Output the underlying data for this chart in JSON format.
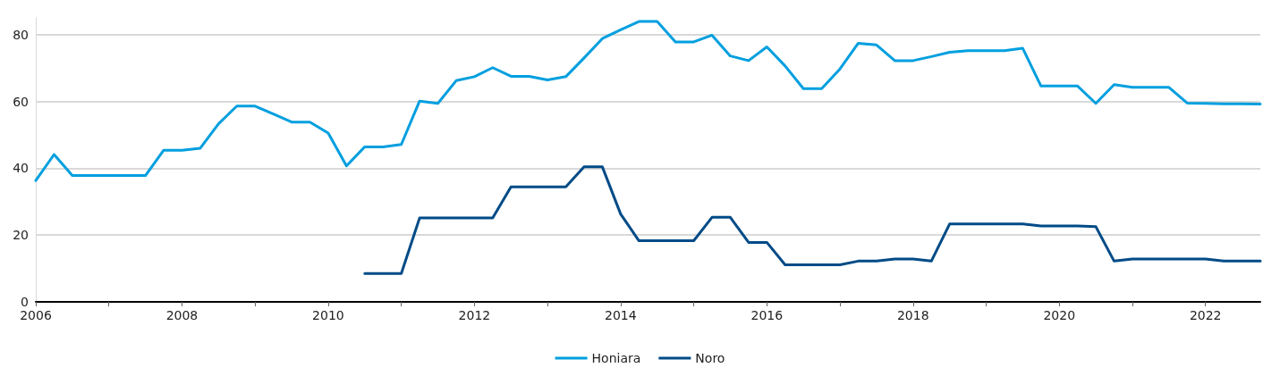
{
  "chart_data": {
    "type": "line",
    "x": [
      2006,
      2006.25,
      2006.5,
      2006.75,
      2007,
      2007.25,
      2007.5,
      2007.75,
      2008,
      2008.25,
      2008.5,
      2008.75,
      2009,
      2009.25,
      2009.5,
      2009.75,
      2010,
      2010.25,
      2010.5,
      2010.75,
      2011,
      2011.25,
      2011.5,
      2011.75,
      2012,
      2012.25,
      2012.5,
      2012.75,
      2013,
      2013.25,
      2013.5,
      2013.75,
      2014,
      2014.25,
      2014.5,
      2014.75,
      2015,
      2015.25,
      2015.5,
      2015.75,
      2016,
      2016.25,
      2016.5,
      2016.75,
      2017,
      2017.25,
      2017.5,
      2017.75,
      2018,
      2018.25,
      2018.5,
      2018.75,
      2019,
      2019.25,
      2019.5,
      2019.75,
      2020,
      2020.25,
      2020.5,
      2020.75,
      2021,
      2021.25,
      2021.5,
      2021.75,
      2022,
      2022.25,
      2022.5,
      2022.75
    ],
    "series": [
      {
        "name": "Honiara",
        "color": "#009fdf",
        "values": [
          36.3,
          44.1,
          37.8,
          37.8,
          37.8,
          37.8,
          37.8,
          45.4,
          45.4,
          46.0,
          53.3,
          58.6,
          58.6,
          56.2,
          53.8,
          53.8,
          50.5,
          40.7,
          46.4,
          46.4,
          47.1,
          60.1,
          59.4,
          66.2,
          67.4,
          70.1,
          67.5,
          67.5,
          66.4,
          67.4,
          73.0,
          78.8,
          81.4,
          83.9,
          83.9,
          77.8,
          77.8,
          79.8,
          73.6,
          72.2,
          76.3,
          70.6,
          63.8,
          63.8,
          69.7,
          77.4,
          76.9,
          72.2,
          72.2,
          73.4,
          74.7,
          75.2,
          75.2,
          75.2,
          75.9,
          64.6,
          64.6,
          64.6,
          59.4,
          65.0,
          64.2,
          64.2,
          64.2,
          59.5,
          59.4,
          59.3,
          59.3,
          59.2
        ]
      },
      {
        "name": "Noro",
        "color": "#004b87",
        "values": [
          null,
          null,
          null,
          null,
          null,
          null,
          null,
          null,
          null,
          null,
          null,
          null,
          null,
          null,
          null,
          null,
          null,
          null,
          8.5,
          8.5,
          8.5,
          25.1,
          25.1,
          25.1,
          25.1,
          25.1,
          34.4,
          34.4,
          34.4,
          34.4,
          40.4,
          40.4,
          26.3,
          18.3,
          18.3,
          18.3,
          18.3,
          25.3,
          25.3,
          17.8,
          17.8,
          11.1,
          11.1,
          11.1,
          11.1,
          12.2,
          12.2,
          12.8,
          12.8,
          12.2,
          23.3,
          23.3,
          23.3,
          23.3,
          23.3,
          22.7,
          22.7,
          22.7,
          22.5,
          12.2,
          12.8,
          12.8,
          12.8,
          12.8,
          12.8,
          12.2,
          12.2,
          12.2
        ]
      }
    ],
    "xlim": [
      2006,
      2022.75
    ],
    "xticks": [
      2006,
      {
        "value": 2007,
        "label": null
      },
      2008,
      {
        "value": 2009,
        "label": null
      },
      2010,
      {
        "value": 2011,
        "label": null
      },
      2012,
      {
        "value": 2013,
        "label": null
      },
      2014,
      {
        "value": 2015,
        "label": null
      },
      2016,
      {
        "value": 2017,
        "label": null
      },
      2018,
      {
        "value": 2019,
        "label": null
      },
      2020,
      {
        "value": 2021,
        "label": null
      },
      2022
    ],
    "ylim": [
      0,
      85
    ],
    "yticks": [
      0,
      20,
      40,
      60,
      80
    ],
    "grid": "y",
    "legend": "bottom",
    "marker": "none",
    "line_style": "solid"
  }
}
